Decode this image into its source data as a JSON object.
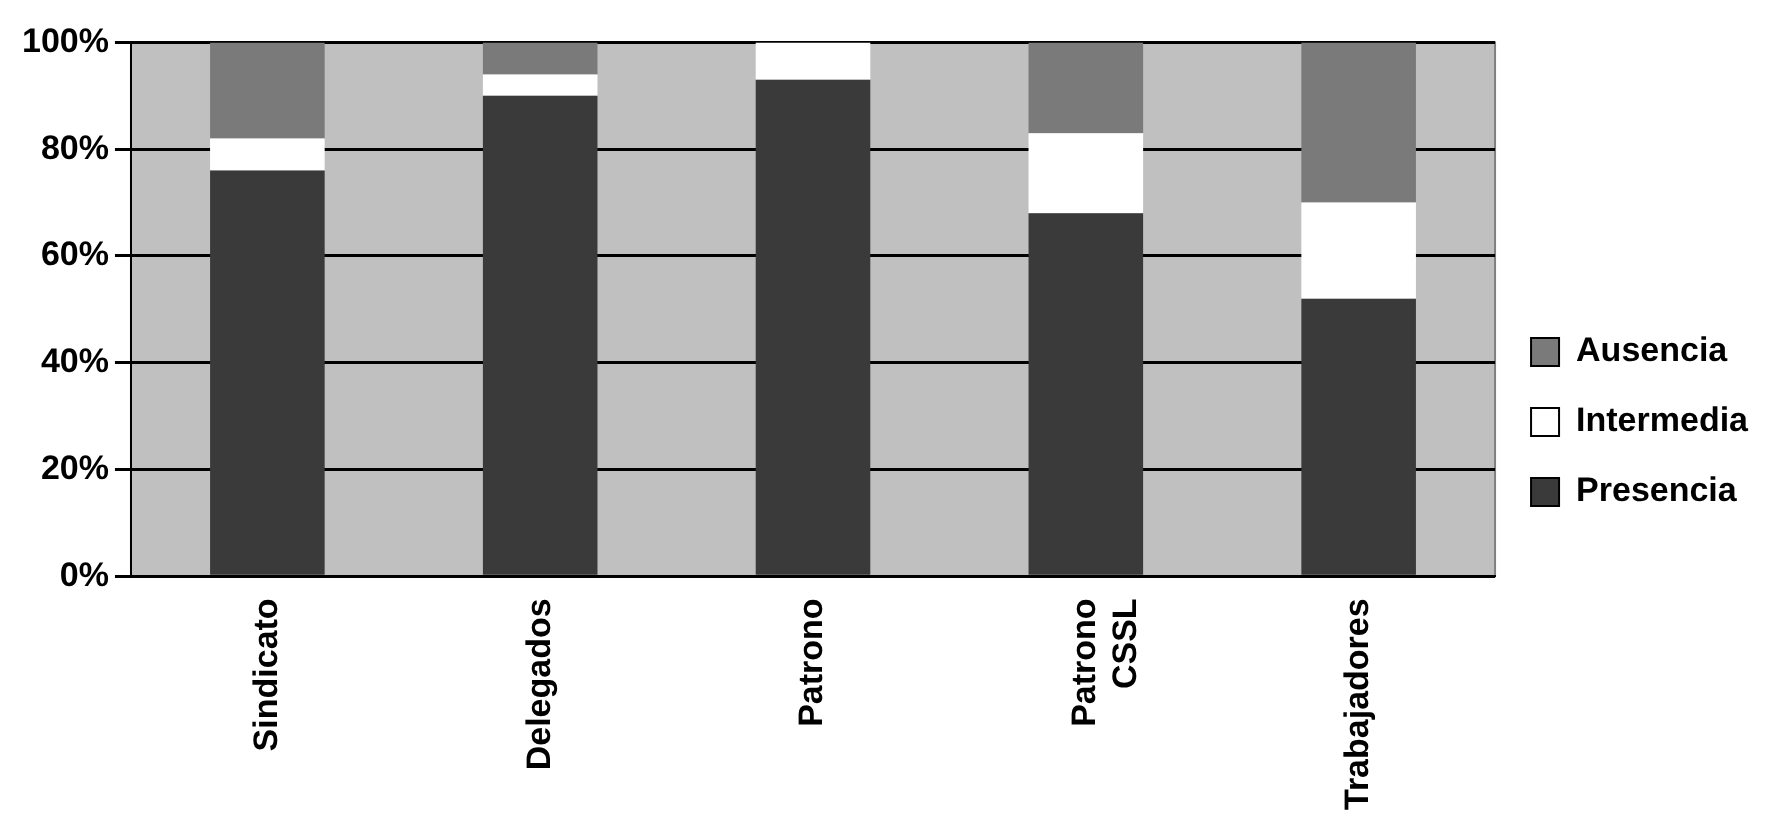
{
  "chart_data": {
    "type": "bar",
    "stacked": true,
    "categories": [
      "Sindicato",
      "Delegados",
      "Patrono",
      "Patrono CSSL",
      "Trabajadores"
    ],
    "series": [
      {
        "name": "Presencia",
        "color": "#3a3a3a",
        "values": [
          76,
          90,
          93,
          68,
          52
        ]
      },
      {
        "name": "Intermedia",
        "color": "#ffffff",
        "values": [
          6,
          4,
          7,
          15,
          18
        ]
      },
      {
        "name": "Ausencia",
        "color": "#7a7a7a",
        "values": [
          18,
          6,
          0,
          17,
          30
        ]
      }
    ],
    "ylim": [
      0,
      100
    ],
    "yticks": [
      {
        "value": 0,
        "label": "0%"
      },
      {
        "value": 20,
        "label": "20%"
      },
      {
        "value": 40,
        "label": "40%"
      },
      {
        "value": 60,
        "label": "60%"
      },
      {
        "value": 80,
        "label": "80%"
      },
      {
        "value": 100,
        "label": "100%"
      }
    ],
    "grid": "y",
    "legend": "right"
  }
}
